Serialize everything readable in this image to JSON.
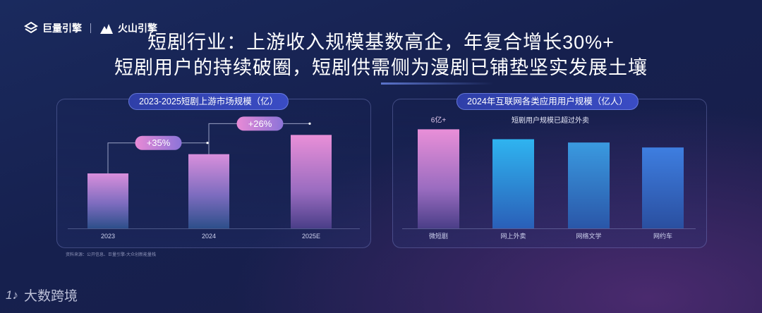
{
  "header": {
    "logo1": "巨量引擎",
    "logo2": "火山引擎",
    "title_line1": "短剧行业：上游收入规模基数高企，年复合增长30%+",
    "title_line2": "短剧用户的持续破圈，短剧供需侧为漫剧已铺垫坚实发展土壤"
  },
  "chart_data": [
    {
      "type": "bar",
      "title": "2023-2025短剧上游市场规模（亿）",
      "categories": [
        "2023",
        "2024",
        "2025E"
      ],
      "values": [
        100,
        135,
        170
      ],
      "growth_labels": [
        "+35%",
        "+26%"
      ],
      "ylim": [
        0,
        200
      ]
    },
    {
      "type": "bar",
      "title": "2024年互联网各类应用用户规模（亿人）",
      "categories": [
        "微短剧",
        "网上外卖",
        "网络文学",
        "网约车"
      ],
      "values": [
        6.0,
        5.4,
        5.2,
        4.9
      ],
      "data_labels": [
        "6亿+",
        "",
        "",
        ""
      ],
      "annotation": "短剧用户规模已超过外卖",
      "ylim": [
        0,
        7
      ]
    }
  ],
  "source": "资料来源：公开信息、巨量引擎-大众创新能量栈",
  "watermark": "大数跨境",
  "watermark_icon": "1♪"
}
